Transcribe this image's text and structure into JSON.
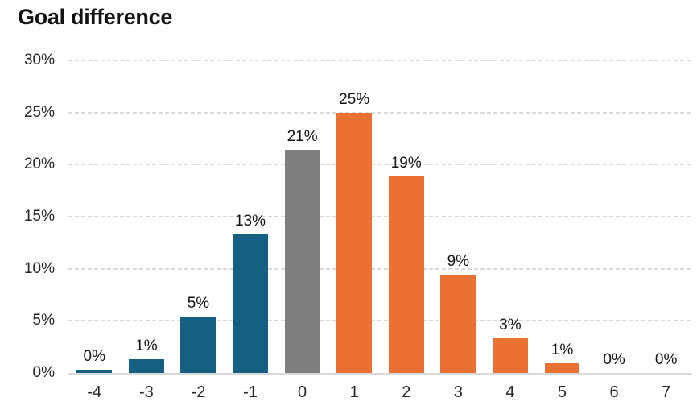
{
  "chart_data": {
    "type": "bar",
    "title": "Goal difference",
    "categories": [
      "-4",
      "-3",
      "-2",
      "-1",
      "0",
      "1",
      "2",
      "3",
      "4",
      "5",
      "6",
      "7"
    ],
    "values": [
      0.3,
      1.3,
      5.4,
      13.3,
      21.4,
      25.0,
      18.9,
      9.4,
      3.3,
      0.9,
      0,
      0
    ],
    "labels": [
      "0%",
      "1%",
      "5%",
      "13%",
      "21%",
      "25%",
      "19%",
      "9%",
      "3%",
      "1%",
      "0%",
      "0%"
    ],
    "bar_colors": [
      "#156082",
      "#156082",
      "#156082",
      "#156082",
      "#7F7F7F",
      "#E97132",
      "#E97132",
      "#E97132",
      "#E97132",
      "#E97132",
      "#E97132",
      "#E97132"
    ],
    "color_legend": {
      "negative": "#156082",
      "zero": "#7F7F7F",
      "positive": "#E97132"
    },
    "ylim": [
      0,
      30
    ],
    "yticks": [
      "30%",
      "25%",
      "20%",
      "15%",
      "10%",
      "5%",
      "0%"
    ],
    "grid": "horizontal-dashed",
    "gridline_color": "#D9D9D9",
    "axis_line_color": "#D9D9D9",
    "xlabel": "",
    "ylabel": ""
  }
}
